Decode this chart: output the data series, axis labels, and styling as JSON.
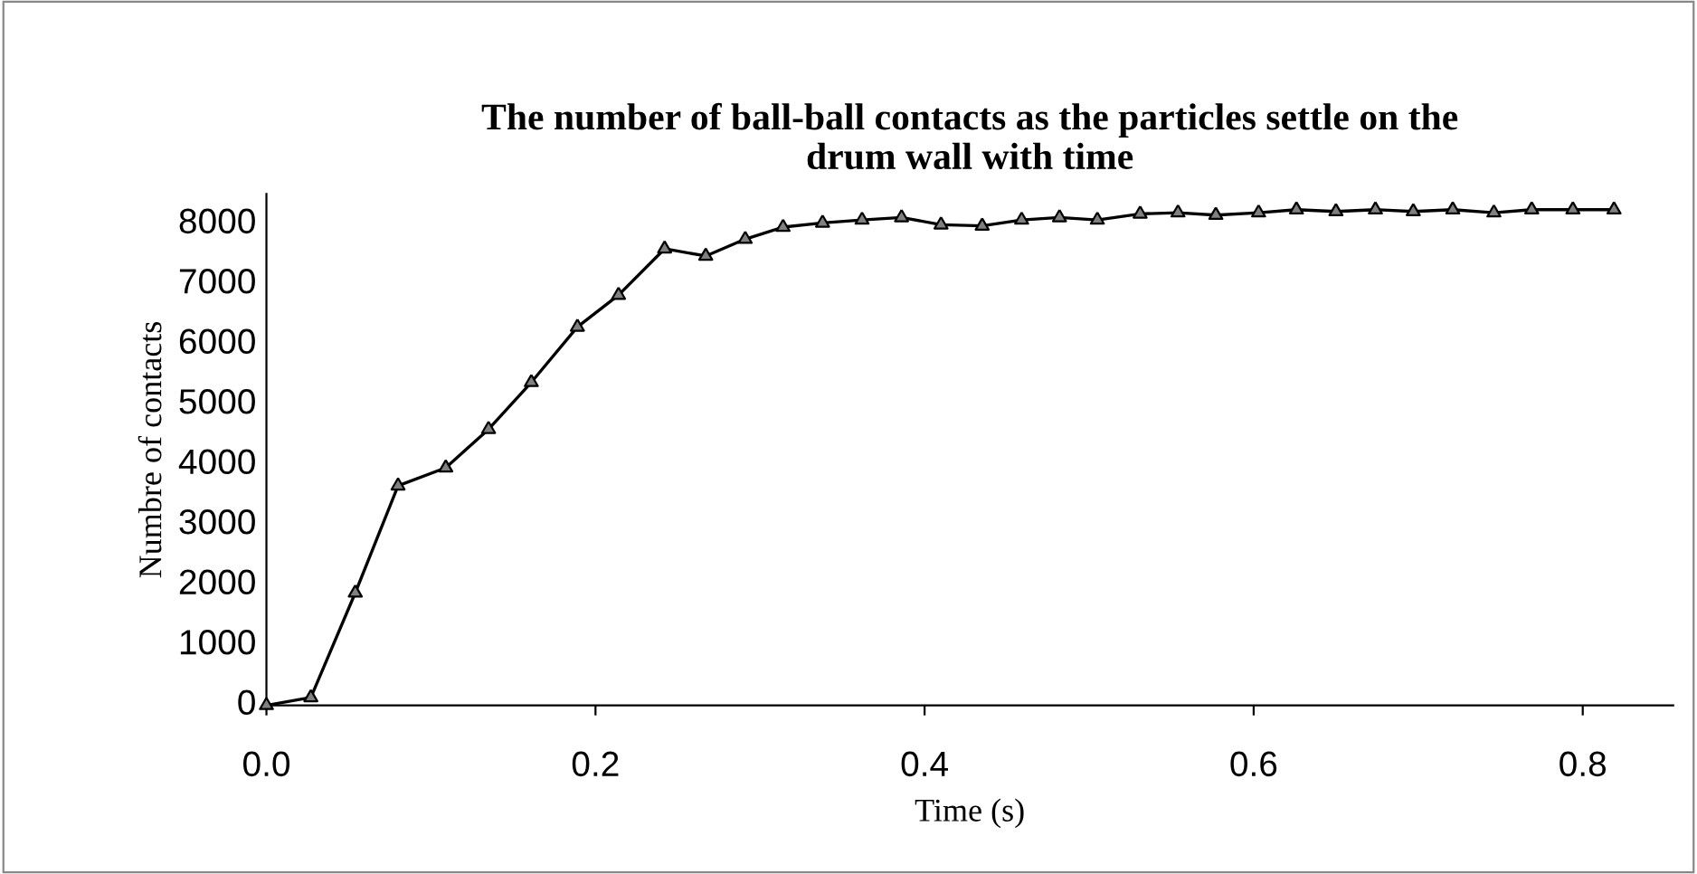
{
  "chart_data": {
    "type": "line",
    "title": "The number of ball-ball contacts as the particles settle on the\ndrum wall with time",
    "xlabel": "Time (s)",
    "ylabel": "Numbre of contacts",
    "marker": "triangle",
    "line_style": "solid",
    "grid": false,
    "legend": false,
    "xlim": [
      0,
      0.855
    ],
    "xticks": [
      {
        "value": 0,
        "label": "0.0"
      },
      0.2,
      0.4,
      0.6,
      0.8
    ],
    "ylim": [
      0,
      8500
    ],
    "yticks": [
      0,
      1000,
      2000,
      3000,
      4000,
      5000,
      6000,
      7000,
      8000
    ],
    "series": [
      {
        "color": "#000000",
        "x": [
          0,
          0.027,
          0.054,
          0.08,
          0.109,
          0.135,
          0.161,
          0.189,
          0.214,
          0.242,
          0.267,
          0.291,
          0.314,
          0.338,
          0.362,
          0.386,
          0.41,
          0.435,
          0.459,
          0.482,
          0.505,
          0.531,
          0.554,
          0.577,
          0.603,
          0.626,
          0.65,
          0.674,
          0.697,
          0.721,
          0.746,
          0.769,
          0.794,
          0.819
        ],
        "values": [
          0,
          130,
          1870,
          3650,
          3950,
          4590,
          5370,
          6290,
          6820,
          7590,
          7470,
          7750,
          7950,
          8020,
          8070,
          8110,
          7990,
          7970,
          8070,
          8110,
          8070,
          8170,
          8190,
          8150,
          8190,
          8240,
          8210,
          8240,
          8210,
          8240,
          8190,
          8240,
          8240,
          8240
        ]
      }
    ]
  }
}
